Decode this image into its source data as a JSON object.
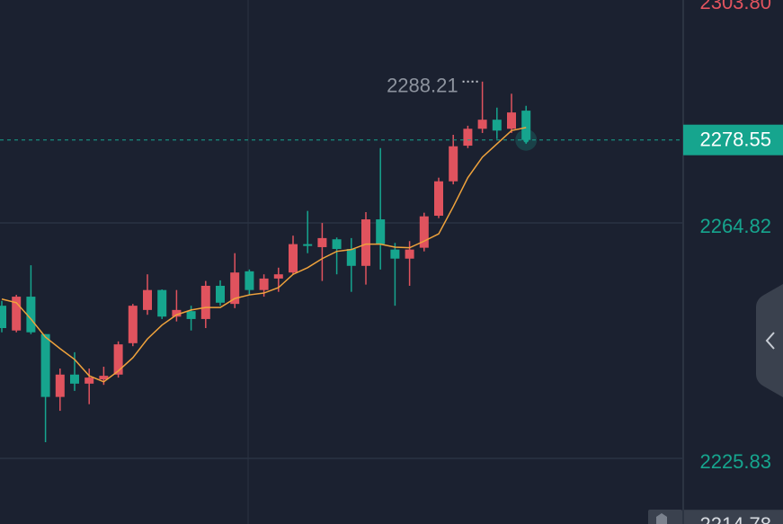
{
  "chart_data": {
    "type": "candlestick",
    "up_color": "#e0535e",
    "down_color": "#16a58e",
    "ma_color": "#f0a33c",
    "ylim": [
      2214.96,
      2301.72
    ],
    "yticks": [
      2264.82,
      2225.83
    ],
    "grid": true,
    "top_label": "2303.80",
    "bottom_label": {
      "value": 2214.78,
      "label": "2214.78"
    },
    "high_label": "2288.21",
    "last_price_label": "2278.55",
    "candles": [
      {
        "open": 2251.1,
        "high": 2251.9,
        "low": 2246.7,
        "close": 2247.4
      },
      {
        "open": 2247.0,
        "high": 2252.9,
        "low": 2246.7,
        "close": 2252.6
      },
      {
        "open": 2252.6,
        "high": 2257.8,
        "low": 2246.4,
        "close": 2246.7
      },
      {
        "open": 2246.4,
        "high": 2246.4,
        "low": 2228.5,
        "close": 2236.0
      },
      {
        "open": 2236.0,
        "high": 2240.7,
        "low": 2233.7,
        "close": 2239.7
      },
      {
        "open": 2239.7,
        "high": 2243.4,
        "low": 2237.0,
        "close": 2238.2
      },
      {
        "open": 2238.2,
        "high": 2240.7,
        "low": 2234.8,
        "close": 2239.2
      },
      {
        "open": 2238.9,
        "high": 2241.0,
        "low": 2238.0,
        "close": 2239.5
      },
      {
        "open": 2239.7,
        "high": 2245.2,
        "low": 2239.2,
        "close": 2244.7
      },
      {
        "open": 2244.9,
        "high": 2251.4,
        "low": 2244.4,
        "close": 2251.1
      },
      {
        "open": 2250.4,
        "high": 2256.3,
        "low": 2249.6,
        "close": 2253.7
      },
      {
        "open": 2253.7,
        "high": 2253.8,
        "low": 2248.9,
        "close": 2249.3
      },
      {
        "open": 2249.3,
        "high": 2253.7,
        "low": 2248.5,
        "close": 2250.4
      },
      {
        "open": 2250.2,
        "high": 2251.1,
        "low": 2247.0,
        "close": 2248.9
      },
      {
        "open": 2248.9,
        "high": 2255.2,
        "low": 2247.4,
        "close": 2254.4
      },
      {
        "open": 2254.4,
        "high": 2255.3,
        "low": 2251.1,
        "close": 2251.6
      },
      {
        "open": 2251.4,
        "high": 2259.8,
        "low": 2250.7,
        "close": 2256.6
      },
      {
        "open": 2256.8,
        "high": 2257.1,
        "low": 2252.9,
        "close": 2253.7
      },
      {
        "open": 2253.7,
        "high": 2256.3,
        "low": 2252.6,
        "close": 2255.6
      },
      {
        "open": 2255.6,
        "high": 2257.4,
        "low": 2253.4,
        "close": 2256.3
      },
      {
        "open": 2256.6,
        "high": 2262.7,
        "low": 2256.2,
        "close": 2261.3
      },
      {
        "open": 2261.3,
        "high": 2266.8,
        "low": 2259.8,
        "close": 2261.0
      },
      {
        "open": 2260.8,
        "high": 2264.8,
        "low": 2255.2,
        "close": 2262.3
      },
      {
        "open": 2262.1,
        "high": 2262.4,
        "low": 2256.3,
        "close": 2260.5
      },
      {
        "open": 2260.5,
        "high": 2262.3,
        "low": 2253.4,
        "close": 2257.7
      },
      {
        "open": 2257.7,
        "high": 2266.6,
        "low": 2254.6,
        "close": 2265.4
      },
      {
        "open": 2265.4,
        "high": 2277.2,
        "low": 2257.1,
        "close": 2261.3
      },
      {
        "open": 2260.4,
        "high": 2261.5,
        "low": 2251.1,
        "close": 2258.9
      },
      {
        "open": 2258.9,
        "high": 2261.8,
        "low": 2254.4,
        "close": 2260.4
      },
      {
        "open": 2260.7,
        "high": 2266.5,
        "low": 2260.1,
        "close": 2265.9
      },
      {
        "open": 2266.0,
        "high": 2272.3,
        "low": 2265.6,
        "close": 2271.7
      },
      {
        "open": 2271.7,
        "high": 2279.4,
        "low": 2271.2,
        "close": 2277.5
      },
      {
        "open": 2277.6,
        "high": 2280.9,
        "low": 2277.2,
        "close": 2280.4
      },
      {
        "open": 2280.4,
        "high": 2288.21,
        "low": 2279.7,
        "close": 2281.9
      },
      {
        "open": 2281.9,
        "high": 2283.9,
        "low": 2278.7,
        "close": 2280.1
      },
      {
        "open": 2280.4,
        "high": 2286.2,
        "low": 2279.7,
        "close": 2283.1
      },
      {
        "open": 2283.4,
        "high": 2284.2,
        "low": 2277.9,
        "close": 2278.55
      }
    ],
    "ma": [
      2252.2,
      2251.6,
      2248.9,
      2245.9,
      2244.0,
      2242.2,
      2239.5,
      2238.5,
      2240.3,
      2242.5,
      2245.6,
      2247.9,
      2249.6,
      2250.4,
      2250.8,
      2250.8,
      2252.3,
      2252.9,
      2253.2,
      2254.1,
      2256.3,
      2257.4,
      2258.9,
      2260.1,
      2260.4,
      2261.3,
      2261.3,
      2260.8,
      2260.7,
      2261.8,
      2263.0,
      2267.5,
      2272.3,
      2275.7,
      2277.9,
      2280.1,
      2280.6
    ]
  }
}
